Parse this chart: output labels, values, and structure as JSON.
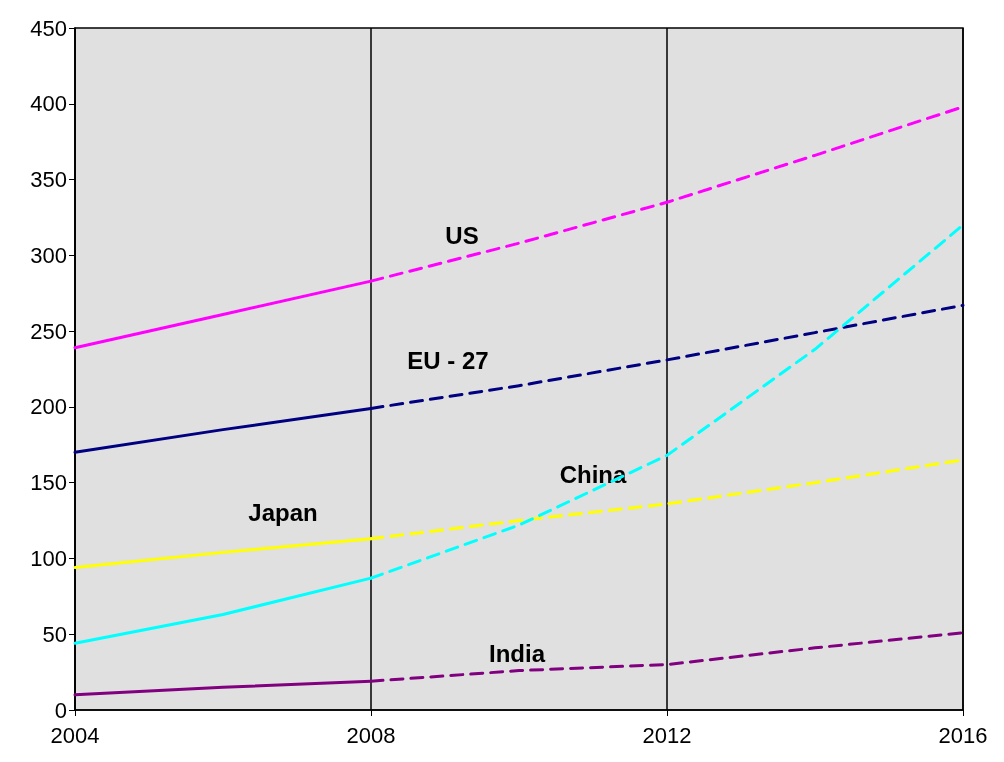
{
  "chart_data": {
    "type": "line",
    "x": [
      2004,
      2006,
      2008
    ],
    "xlim": [
      2004,
      2016
    ],
    "xticks": [
      2004,
      2008,
      2012,
      2016
    ],
    "ylim": [
      0,
      450
    ],
    "yticks": [
      0,
      50,
      100,
      150,
      200,
      250,
      300,
      350,
      400,
      450
    ],
    "grid": "x",
    "marker": "none",
    "series": [
      {
        "color": "#ff00ff",
        "line_style": "solid",
        "values": [
          239,
          261,
          283
        ]
      },
      {
        "name": "US",
        "color": "#ff00ff",
        "line_style": "dashed",
        "x": [
          2008,
          2010,
          2012,
          2014,
          2016
        ],
        "values": [
          283,
          308,
          335,
          366,
          398
        ]
      },
      {
        "color": "#000080",
        "line_style": "solid",
        "values": [
          170,
          185,
          199
        ]
      },
      {
        "name": "EU - 27",
        "color": "#000080",
        "line_style": "dashed",
        "x": [
          2008,
          2010,
          2012,
          2014,
          2016
        ],
        "values": [
          199,
          214,
          231,
          249,
          267
        ]
      },
      {
        "name": "Japan",
        "color": "#ffff00",
        "line_style": "solid",
        "values": [
          94,
          104,
          113
        ]
      },
      {
        "color": "#ffff00",
        "line_style": "dashed",
        "x": [
          2008,
          2010,
          2012,
          2014,
          2016
        ],
        "values": [
          113,
          125,
          136,
          150,
          165
        ]
      },
      {
        "color": "#00ffff",
        "line_style": "solid",
        "values": [
          44,
          63,
          87
        ]
      },
      {
        "name": "China",
        "color": "#00ffff",
        "line_style": "dashed",
        "x": [
          2008,
          2010,
          2012,
          2014,
          2016
        ],
        "values": [
          87,
          122,
          168,
          238,
          320
        ]
      },
      {
        "color": "#800080",
        "line_style": "solid",
        "values": [
          10,
          15,
          19
        ]
      },
      {
        "name": "India",
        "color": "#800080",
        "line_style": "dashed",
        "x": [
          2008,
          2010,
          2012,
          2014,
          2016
        ],
        "values": [
          19,
          26,
          30,
          41,
          51
        ]
      }
    ]
  }
}
